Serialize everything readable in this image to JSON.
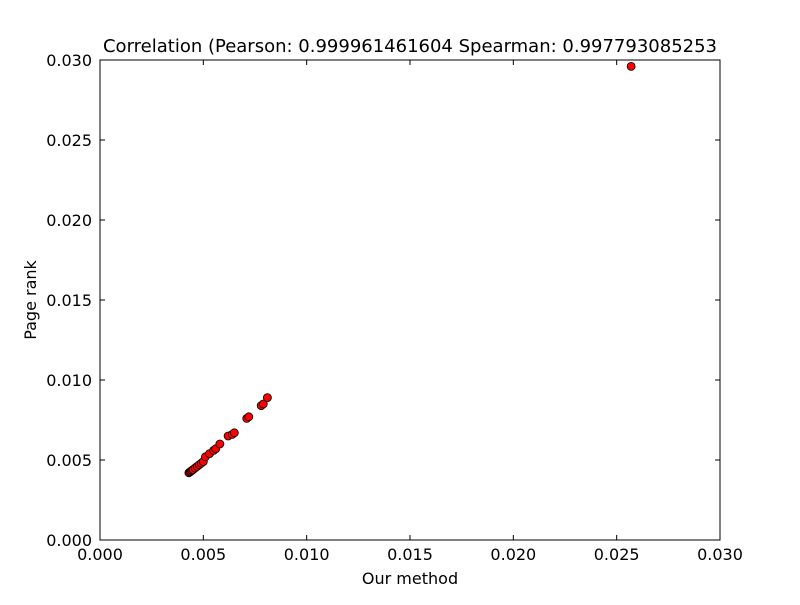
{
  "chart_data": {
    "type": "scatter",
    "title": "Correlation (Pearson: 0.999961461604 Spearman: 0.997793085253",
    "xlabel": "Our method",
    "ylabel": "Page rank",
    "xlim": [
      0.0,
      0.03
    ],
    "ylim": [
      0.0,
      0.03
    ],
    "xticks": [
      "0.000",
      "0.005",
      "0.010",
      "0.015",
      "0.020",
      "0.025",
      "0.030"
    ],
    "yticks": [
      "0.000",
      "0.005",
      "0.010",
      "0.015",
      "0.020",
      "0.025",
      "0.030"
    ],
    "grid": false,
    "marker_color": "#ff0000",
    "marker_edge_color": "#000000",
    "series": [
      {
        "x": [
          0.0043,
          0.00435,
          0.0044,
          0.00445,
          0.0045,
          0.0046,
          0.0047,
          0.0048,
          0.0049,
          0.005,
          0.0051,
          0.0053,
          0.0055,
          0.0056,
          0.0058,
          0.0062,
          0.0064,
          0.0065,
          0.0071,
          0.0072,
          0.0078,
          0.0079,
          0.0081,
          0.0257
        ],
        "y": [
          0.0042,
          0.00425,
          0.0043,
          0.00435,
          0.0044,
          0.0045,
          0.0046,
          0.0047,
          0.0048,
          0.0049,
          0.0052,
          0.0054,
          0.0056,
          0.0057,
          0.006,
          0.0065,
          0.0066,
          0.0067,
          0.0076,
          0.0077,
          0.0084,
          0.0085,
          0.0089,
          0.0296
        ]
      }
    ]
  }
}
